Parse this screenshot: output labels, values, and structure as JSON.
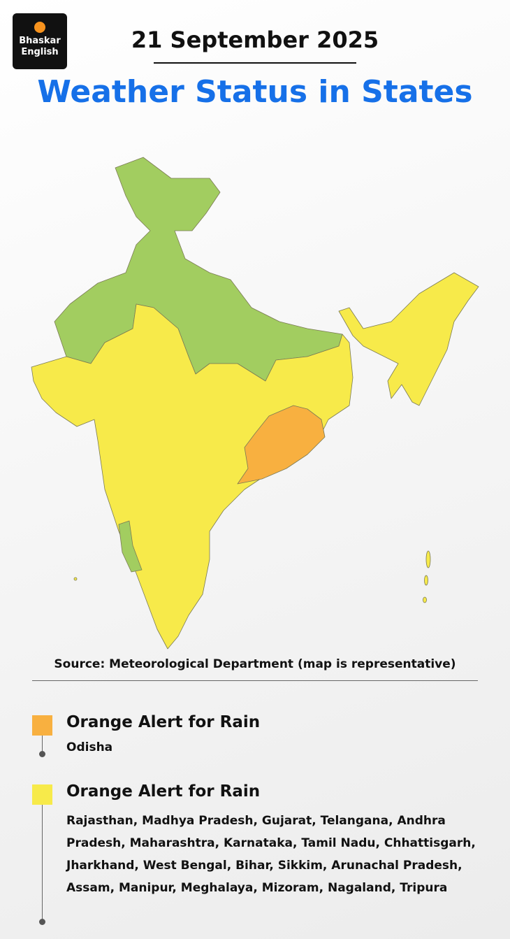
{
  "brand": {
    "line1": "Bhaskar",
    "line2": "English"
  },
  "header": {
    "date": "21 September 2025",
    "title": "Weather Status in States"
  },
  "map": {
    "source": "Source: Meteorological Department (map is representative)"
  },
  "legend": {
    "items": [
      {
        "title": "Orange Alert for Rain",
        "color": "#f8b040",
        "states": "Odisha"
      },
      {
        "title": "Orange Alert for Rain",
        "color": "#f7ea4a",
        "states": "Rajasthan, Madhya Pradesh, Gujarat, Telangana, Andhra Pradesh, Maharashtra, Karnataka, Tamil Nadu, Chhattisgarh, Jharkhand, West Bengal, Bihar, Sikkim, Arunachal Pradesh, Assam, Manipur, Meghalaya, Mizoram, Nagaland, Tripura"
      }
    ]
  }
}
